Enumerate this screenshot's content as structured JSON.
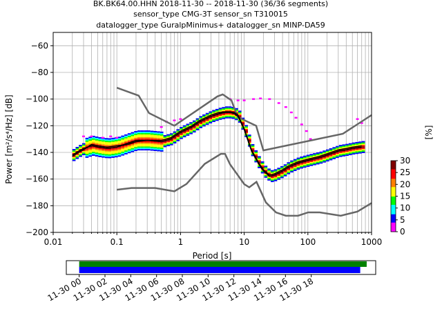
{
  "chart_data": {
    "type": "heatmap",
    "title_lines": [
      "BK.BK64.00.HHN   2018-11-30 -- 2018-11-30  (36/36 segments)",
      "sensor_type CMG-3T sensor_sn T310015",
      "datalogger_type GuralpMinimus+ datalogger_sn MINP-DA59"
    ],
    "xlabel": "Period [s]",
    "ylabel": "Power [m²/s⁴/Hz] [dB]",
    "xscale": "log",
    "xlim": [
      0.01,
      1000
    ],
    "ylim": [
      -200,
      -50
    ],
    "xticks": [
      {
        "value": 0.01,
        "label": "0.01"
      },
      {
        "value": 0.1,
        "label": "0.1"
      },
      {
        "value": 1,
        "label": "1"
      },
      {
        "value": 10,
        "label": "10"
      },
      {
        "value": 100,
        "label": "100"
      },
      {
        "value": 1000,
        "label": "1000"
      }
    ],
    "yticks": [
      {
        "value": -60,
        "label": "−60"
      },
      {
        "value": -80,
        "label": "−80"
      },
      {
        "value": -100,
        "label": "−100"
      },
      {
        "value": -120,
        "label": "−120"
      },
      {
        "value": -140,
        "label": "−140"
      },
      {
        "value": -160,
        "label": "−160"
      },
      {
        "value": -180,
        "label": "−180"
      },
      {
        "value": -200,
        "label": "−200"
      }
    ],
    "grid": true,
    "colorbar": {
      "label": "[%]",
      "range": [
        0,
        30
      ],
      "ticks": [
        {
          "value": 0,
          "label": "0"
        },
        {
          "value": 5,
          "label": "5"
        },
        {
          "value": 10,
          "label": "10"
        },
        {
          "value": 15,
          "label": "15"
        },
        {
          "value": 20,
          "label": "20"
        },
        {
          "value": 25,
          "label": "25"
        },
        {
          "value": 30,
          "label": "30"
        }
      ],
      "colors": [
        "#ff00ff",
        "#0000ff",
        "#00ffff",
        "#00ff00",
        "#ffff00",
        "#ff8000",
        "#ff0000",
        "#800000"
      ]
    },
    "noise_models": {
      "high": {
        "x": [
          0.1,
          0.22,
          0.32,
          0.8,
          3.8,
          4.6,
          6.3,
          7.9,
          15.4,
          20,
          354.8,
          1000
        ],
        "y": [
          -91.5,
          -97.4,
          -110.5,
          -120,
          -98,
          -96.5,
          -101,
          -113.5,
          -120,
          -138.5,
          -126,
          -112
        ]
      },
      "low": {
        "x": [
          0.1,
          0.17,
          0.4,
          0.8,
          1.24,
          2.4,
          4.3,
          5,
          6,
          10,
          12,
          15.6,
          21.9,
          31.6,
          45,
          70,
          101,
          154,
          328,
          600,
          1000
        ],
        "y": [
          -168,
          -166.7,
          -166.7,
          -169.2,
          -163.7,
          -148.6,
          -141.1,
          -141.1,
          -149,
          -163.8,
          -166.2,
          -162.1,
          -177.5,
          -185,
          -187.5,
          -187.5,
          -185,
          -185,
          -187.5,
          -184.4,
          -178
        ]
      },
      "color": "#666666"
    },
    "mean_curve": {
      "x": [
        0.02,
        0.025,
        0.03,
        0.04,
        0.05,
        0.07,
        0.1,
        0.15,
        0.2,
        0.3,
        0.5,
        0.7,
        1,
        1.5,
        2,
        3,
        4,
        5,
        6,
        7,
        8,
        10,
        13,
        17,
        20,
        25,
        30,
        40,
        50,
        70,
        100,
        150,
        200,
        300,
        400,
        500,
        700
      ],
      "y": [
        -143,
        -140,
        -138,
        -134,
        -135,
        -136,
        -135,
        -134,
        -132,
        -131,
        -131,
        -129,
        -124,
        -120,
        -116,
        -112,
        -110,
        -109.5,
        -109.5,
        -110,
        -112,
        -122,
        -138,
        -148,
        -153,
        -157,
        -156,
        -153,
        -150,
        -147,
        -145,
        -143,
        -141,
        -138,
        -137,
        -136,
        -135
      ]
    },
    "mode_curve": {
      "x": [
        0.02,
        0.025,
        0.03,
        0.04,
        0.05,
        0.07,
        0.1,
        0.15,
        0.2,
        0.3,
        0.5,
        0.7,
        1,
        1.5,
        2,
        3,
        4,
        5,
        6,
        7,
        8,
        10,
        13,
        17,
        20,
        25,
        30,
        40,
        50,
        70,
        100,
        150,
        200,
        300,
        400,
        500,
        700
      ],
      "y": [
        -142,
        -139,
        -137,
        -135,
        -136,
        -137,
        -136,
        -133,
        -131,
        -131,
        -132,
        -130,
        -125,
        -121,
        -117,
        -113,
        -111,
        -110,
        -110,
        -111,
        -113,
        -123,
        -139,
        -149,
        -154,
        -158,
        -157,
        -154,
        -151,
        -148,
        -146,
        -144,
        -142,
        -139,
        -138,
        -137,
        -136
      ]
    },
    "outlier_points": [
      {
        "x": 0.03,
        "y": -128
      },
      {
        "x": 0.04,
        "y": -128
      },
      {
        "x": 0.06,
        "y": -129
      },
      {
        "x": 0.08,
        "y": -128
      },
      {
        "x": 0.1,
        "y": -129
      },
      {
        "x": 0.5,
        "y": -121
      },
      {
        "x": 0.6,
        "y": -117
      },
      {
        "x": 0.8,
        "y": -116
      },
      {
        "x": 1,
        "y": -115
      },
      {
        "x": 6,
        "y": -100
      },
      {
        "x": 8,
        "y": -101
      },
      {
        "x": 10,
        "y": -101
      },
      {
        "x": 14,
        "y": -100
      },
      {
        "x": 18,
        "y": -99.5
      },
      {
        "x": 25,
        "y": -100
      },
      {
        "x": 35,
        "y": -103
      },
      {
        "x": 45,
        "y": -106
      },
      {
        "x": 55,
        "y": -110
      },
      {
        "x": 65,
        "y": -114
      },
      {
        "x": 80,
        "y": -119
      },
      {
        "x": 95,
        "y": -124
      },
      {
        "x": 110,
        "y": -130
      },
      {
        "x": 600,
        "y": -115
      },
      {
        "x": 700,
        "y": -118
      }
    ],
    "timeline": {
      "tick_labels": [
        "11-30 00",
        "11-30 02",
        "11-30 04",
        "11-30 06",
        "11-30 08",
        "11-30 10",
        "11-30 12",
        "11-30 14",
        "11-30 16",
        "11-30 18"
      ],
      "tick_hours": [
        0,
        2,
        4,
        6,
        8,
        10,
        12,
        14,
        16,
        18
      ],
      "range_hours": [
        -1,
        23
      ],
      "data_bar_hours": [
        0,
        22.3
      ],
      "used_bar_hours": [
        0,
        21.8
      ],
      "data_color": "#008000",
      "used_color": "#0000ff"
    }
  }
}
